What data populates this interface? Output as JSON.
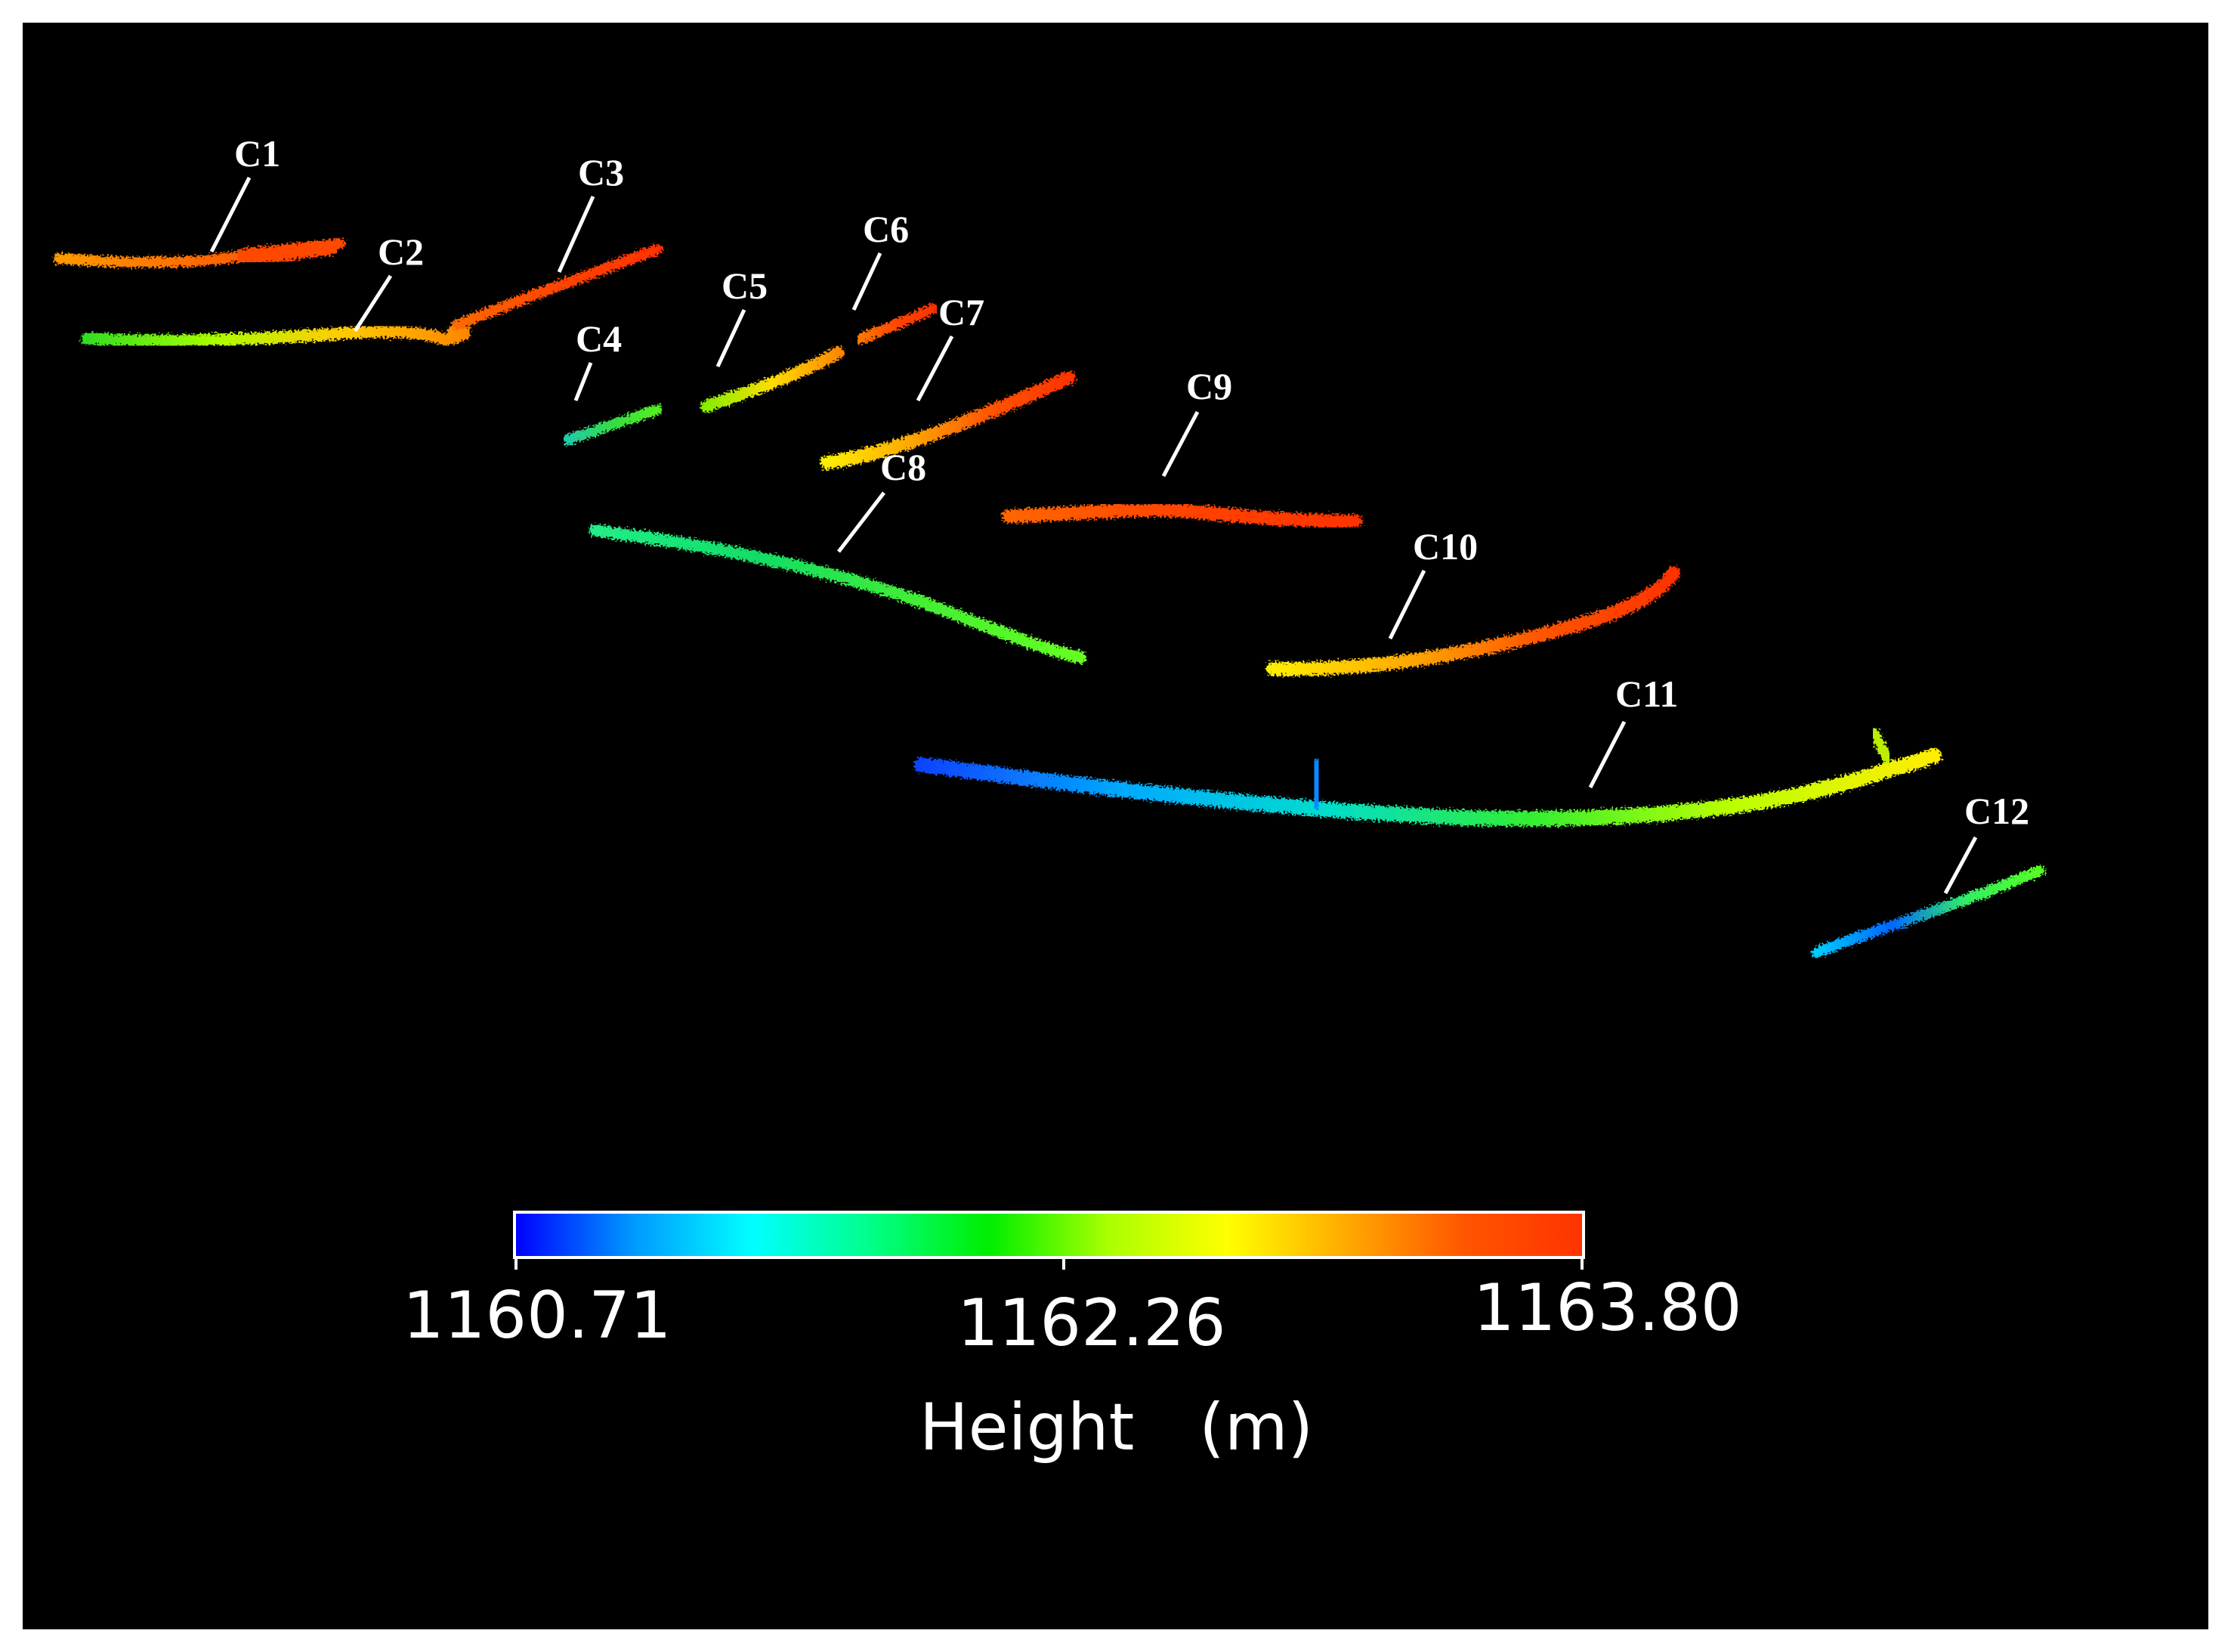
{
  "figure": {
    "curves": [
      {
        "label": "C1",
        "colors": [
          "#ff9a00",
          "#ff6a00",
          "#ff4a00"
        ]
      },
      {
        "label": "C2",
        "colors": [
          "#33dd22",
          "#aaff00",
          "#ffcc00",
          "#ff8800"
        ]
      },
      {
        "label": "C3",
        "colors": [
          "#ff6a00",
          "#ff4400",
          "#ff3300"
        ]
      },
      {
        "label": "C4",
        "colors": [
          "#22ccaa",
          "#33dd44",
          "#55ee22"
        ]
      },
      {
        "label": "C5",
        "colors": [
          "#88ee00",
          "#ffdd00",
          "#ff8800"
        ]
      },
      {
        "label": "C6",
        "colors": [
          "#ff7700",
          "#ff4400",
          "#ff3300"
        ]
      },
      {
        "label": "C7",
        "colors": [
          "#ffee00",
          "#ffaa00",
          "#ff5500",
          "#ff3300"
        ]
      },
      {
        "label": "C8",
        "colors": [
          "#22ee88",
          "#11dd66",
          "#44ee33",
          "#66ff22"
        ]
      },
      {
        "label": "C9",
        "colors": [
          "#ff6600",
          "#ff4400",
          "#ff3300"
        ]
      },
      {
        "label": "C10",
        "colors": [
          "#ffee00",
          "#ffaa00",
          "#ff5500",
          "#ff3300"
        ]
      },
      {
        "label": "C11",
        "colors": [
          "#1144ff",
          "#00aaff",
          "#00ddcc",
          "#33ee33",
          "#bbff00",
          "#ffee00"
        ]
      },
      {
        "label": "C12",
        "colors": [
          "#00ccff",
          "#0066ff",
          "#33ee66",
          "#55ff22"
        ]
      }
    ],
    "colorbar": {
      "min_label": "1160.71",
      "mid_label": "1162.26",
      "max_label": "1163.80",
      "title": "Height　(m)",
      "gradient": [
        "#0000ff",
        "#0099ff",
        "#00ffff",
        "#00ff88",
        "#00ee00",
        "#aaff00",
        "#ffff00",
        "#ffaa00",
        "#ff5500",
        "#ff3300"
      ]
    }
  }
}
